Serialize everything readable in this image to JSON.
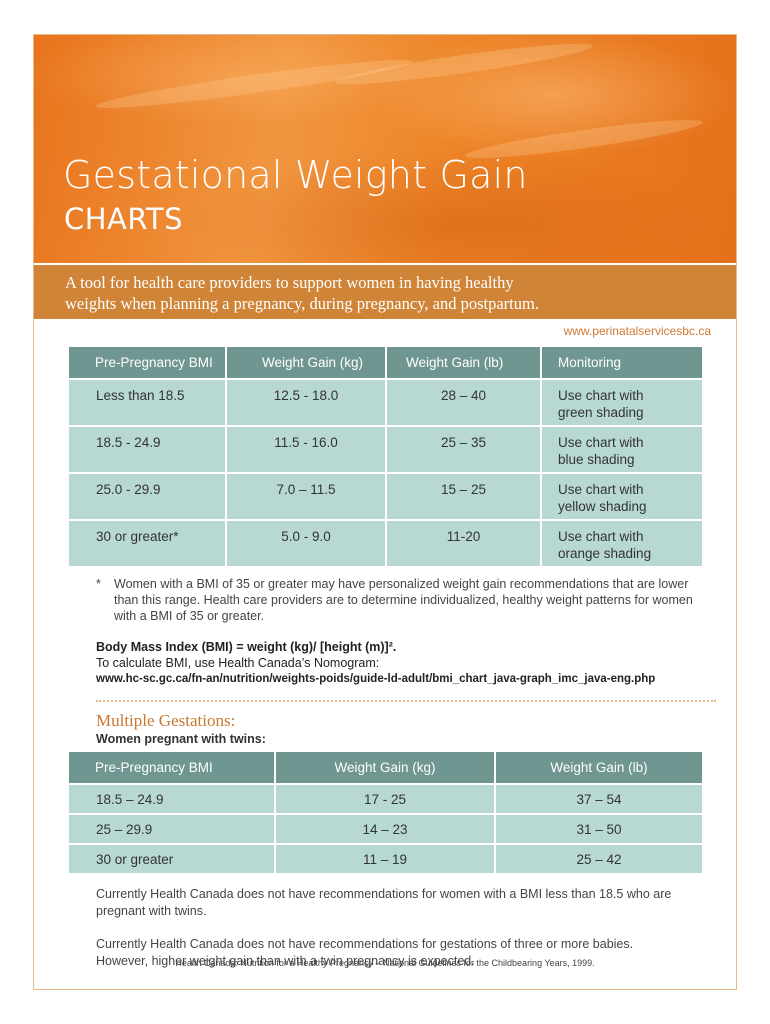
{
  "header": {
    "title": "Gestational Weight Gain",
    "subtitle": "CHARTS",
    "tagline_line1": "A tool for health care providers to support women in having healthy",
    "tagline_line2": "weights when planning a pregnancy, during pregnancy, and postpartum.",
    "website": "www.perinatalservicesbc.ca"
  },
  "singleton_table": {
    "headers": [
      "Pre-Pregnancy BMI",
      "Weight Gain (kg)",
      "Weight Gain (lb)",
      "Monitoring"
    ],
    "rows": [
      {
        "bmi": "Less than 18.5",
        "kg": "12.5 - 18.0",
        "lb": "28 – 40",
        "monitor_line1": "Use chart with",
        "monitor_line2": "green shading"
      },
      {
        "bmi": "18.5 - 24.9",
        "kg": "11.5 - 16.0",
        "lb": "25 – 35",
        "monitor_line1": "Use chart with",
        "monitor_line2": "blue shading"
      },
      {
        "bmi": "25.0 - 29.9",
        "kg": "7.0 – 11.5",
        "lb": "15 – 25",
        "monitor_line1": "Use chart with",
        "monitor_line2": "yellow shading"
      },
      {
        "bmi": "30 or greater*",
        "kg": "5.0 - 9.0",
        "lb": "11-20",
        "monitor_line1": "Use chart with",
        "monitor_line2": "orange shading"
      }
    ]
  },
  "footnote": {
    "star": "*",
    "text": "Women with a BMI of 35 or greater may have personalized weight gain recommendations that are lower than this range. Health care providers are to determine individualized, healthy weight patterns for women with a BMI of 35 or greater."
  },
  "bmi": {
    "formula": "Body Mass Index (BMI) = weight (kg)/ [height (m)]².",
    "instruction": "To calculate BMI, use Health Canada’s Nomogram:",
    "link": "www.hc-sc.gc.ca/fn-an/nutrition/weights-poids/guide-ld-adult/bmi_chart_java-graph_imc_java-eng.php"
  },
  "multiple": {
    "title": "Multiple Gestations:",
    "subtitle": "Women pregnant with twins:",
    "headers": [
      "Pre-Pregnancy BMI",
      "Weight Gain (kg)",
      "Weight Gain (lb)"
    ],
    "rows": [
      {
        "bmi": "18.5 – 24.9",
        "kg": "17 - 25",
        "lb": "37 – 54"
      },
      {
        "bmi": "25 – 29.9",
        "kg": "14 – 23",
        "lb": "31 – 50"
      },
      {
        "bmi": "30 or greater",
        "kg": "11 – 19",
        "lb": "25 – 42"
      }
    ]
  },
  "notes": {
    "note1": "Currently Health Canada does not have recommendations for women with a BMI less than 18.5 who are pregnant with twins.",
    "note2": "Currently Health Canada does not have recommendations for gestations of three or more babies. However, higher weight gain than with a twin pregnancy is expected."
  },
  "source": "Health Canada: Nutrition for a Healthy Pregnancy – National Guidelines for the Childbearing Years, 1999."
}
